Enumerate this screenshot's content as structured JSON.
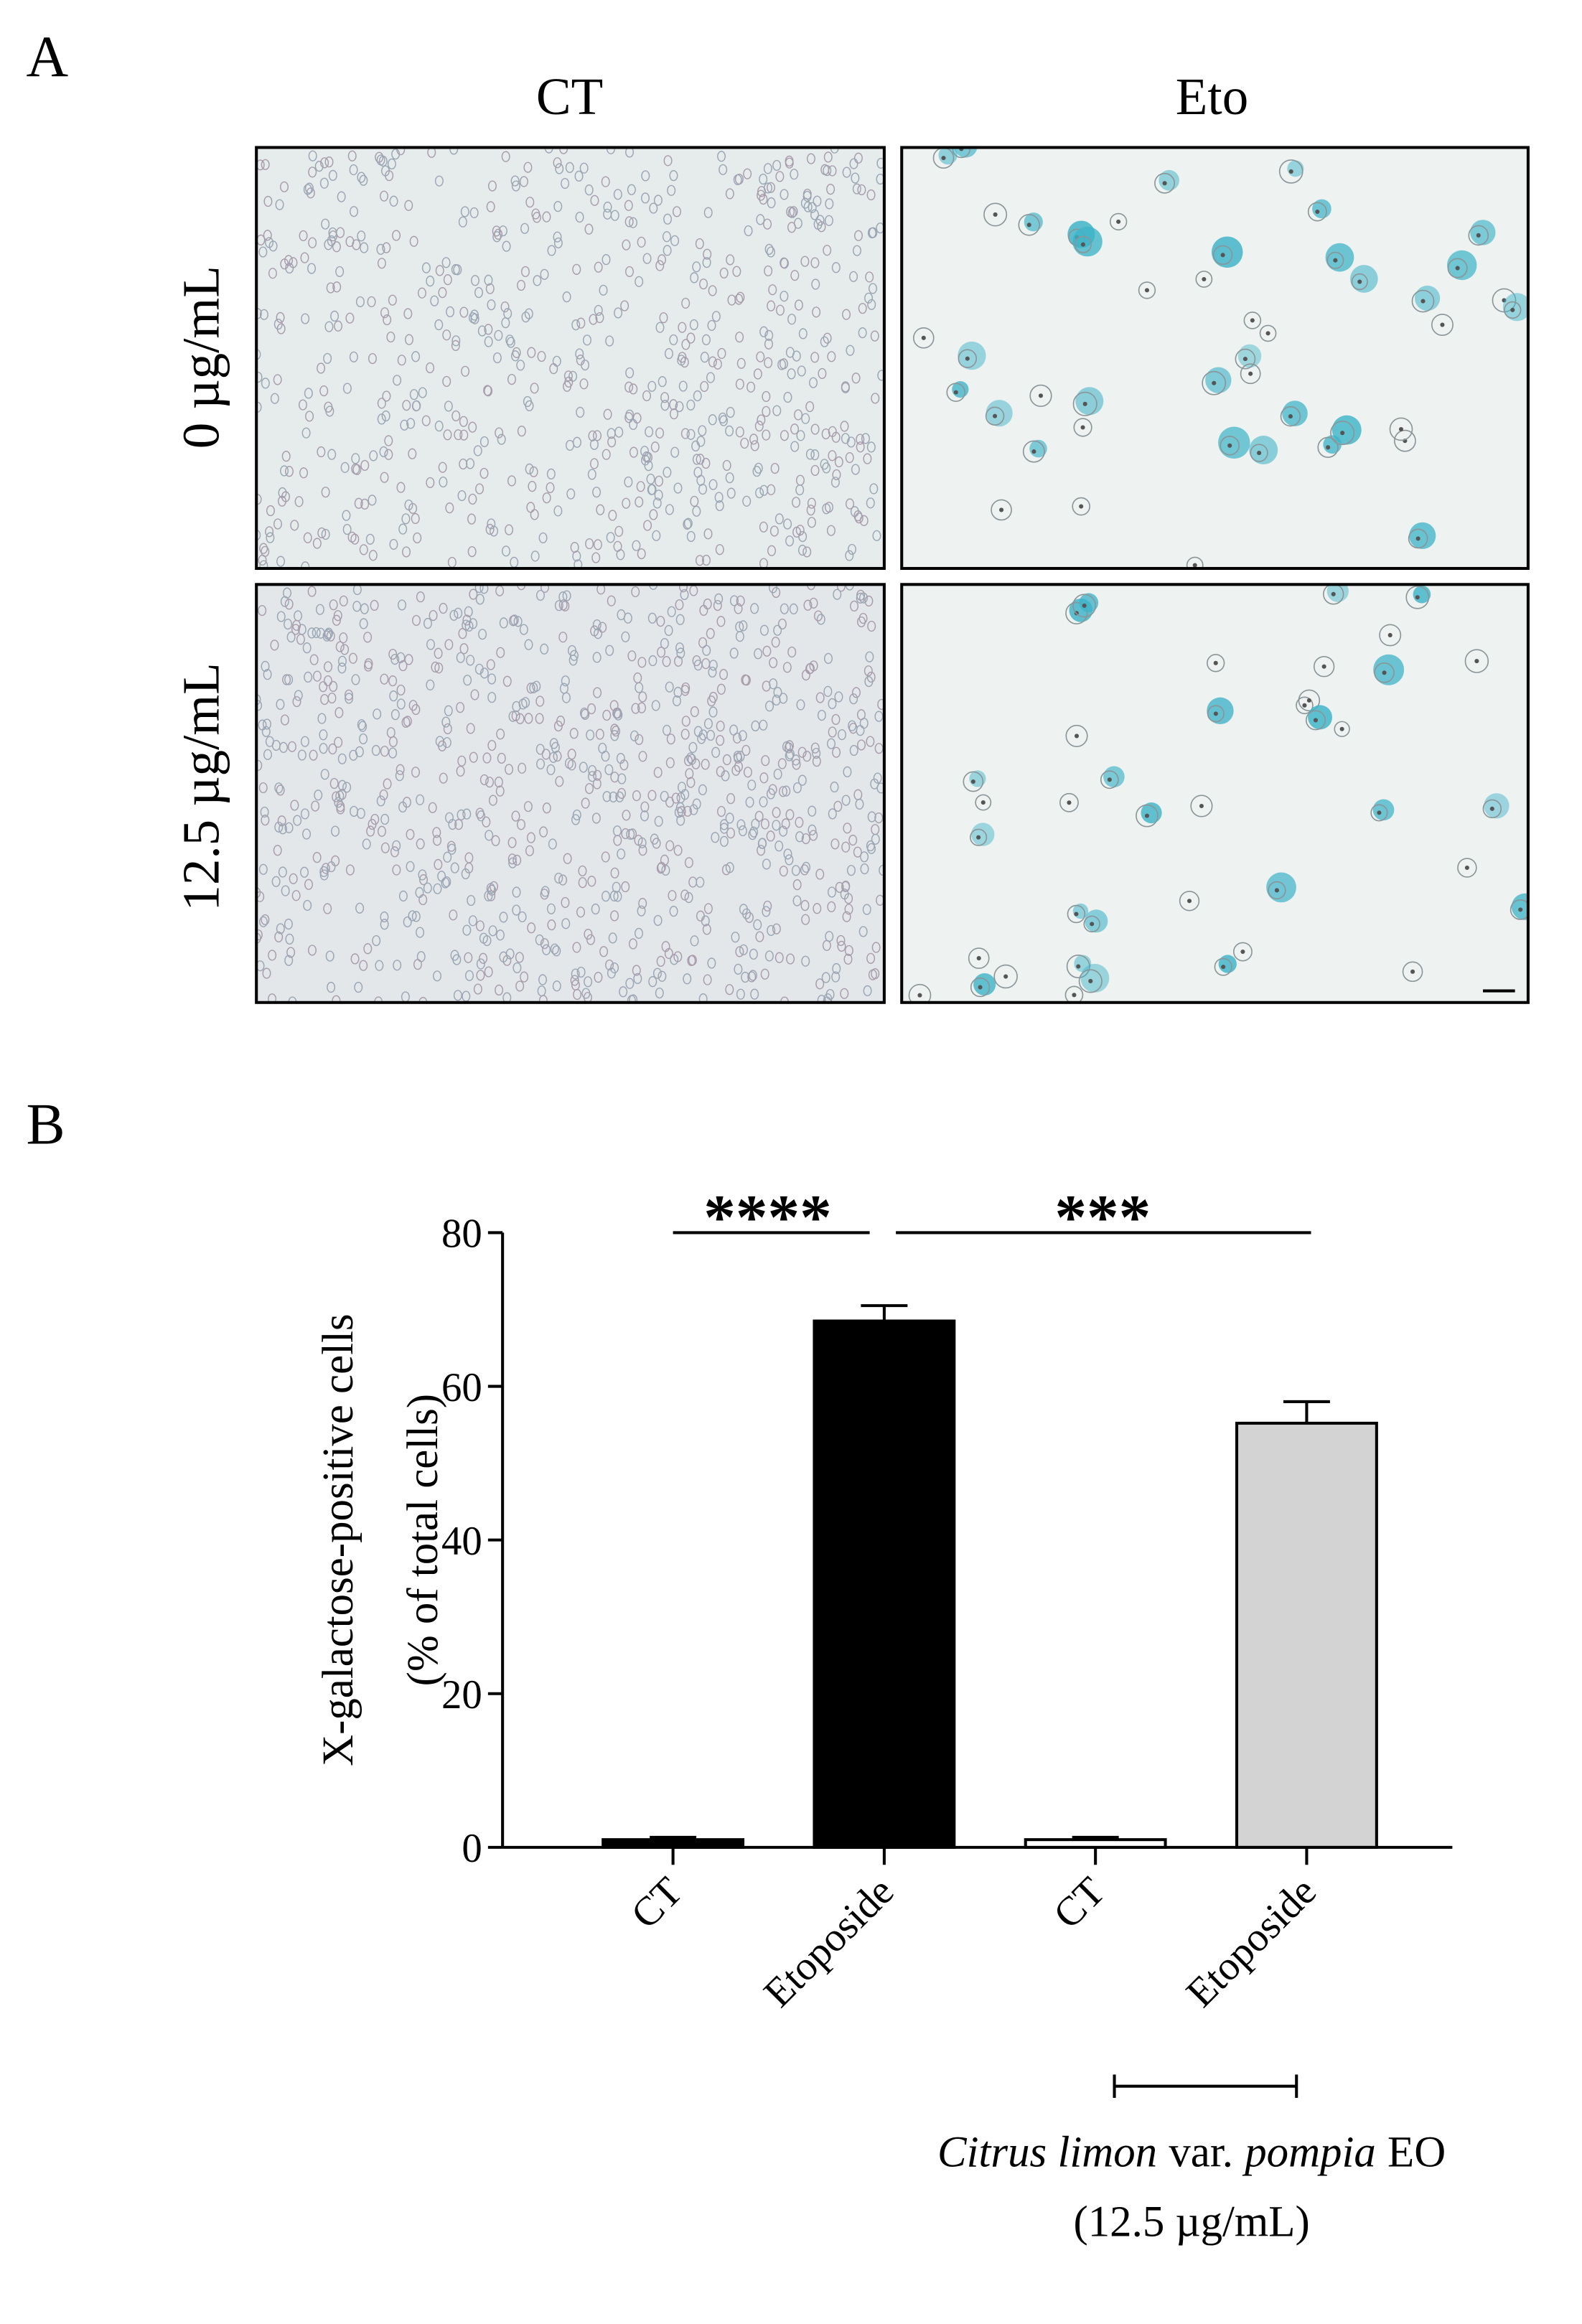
{
  "panel_a": {
    "label": "A",
    "columns": [
      "CT",
      "Eto"
    ],
    "rows": [
      "0 µg/mL",
      "12.5 µg/mL"
    ]
  },
  "panel_b": {
    "label": "B"
  },
  "chart_data": {
    "type": "bar",
    "y_label": [
      "X-galactose-positive cells",
      "(% of total cells)"
    ],
    "categories": [
      "CT",
      "Etoposide",
      "CT",
      "Etoposide"
    ],
    "values": [
      1,
      68.5,
      1,
      55.2
    ],
    "errors": [
      0.3,
      2,
      0.3,
      2.8
    ],
    "colors": [
      "#000000",
      "#000000",
      "#ffffff",
      "#d3d3d3"
    ],
    "ylim": [
      0,
      80
    ],
    "yticks": [
      0,
      20,
      40,
      60,
      80
    ],
    "annotations": [
      "****",
      "***"
    ],
    "group_label": [
      "Citrus limon",
      "var.",
      "pompia",
      "EO"
    ],
    "group_note": "(12.5 µg/mL)"
  }
}
